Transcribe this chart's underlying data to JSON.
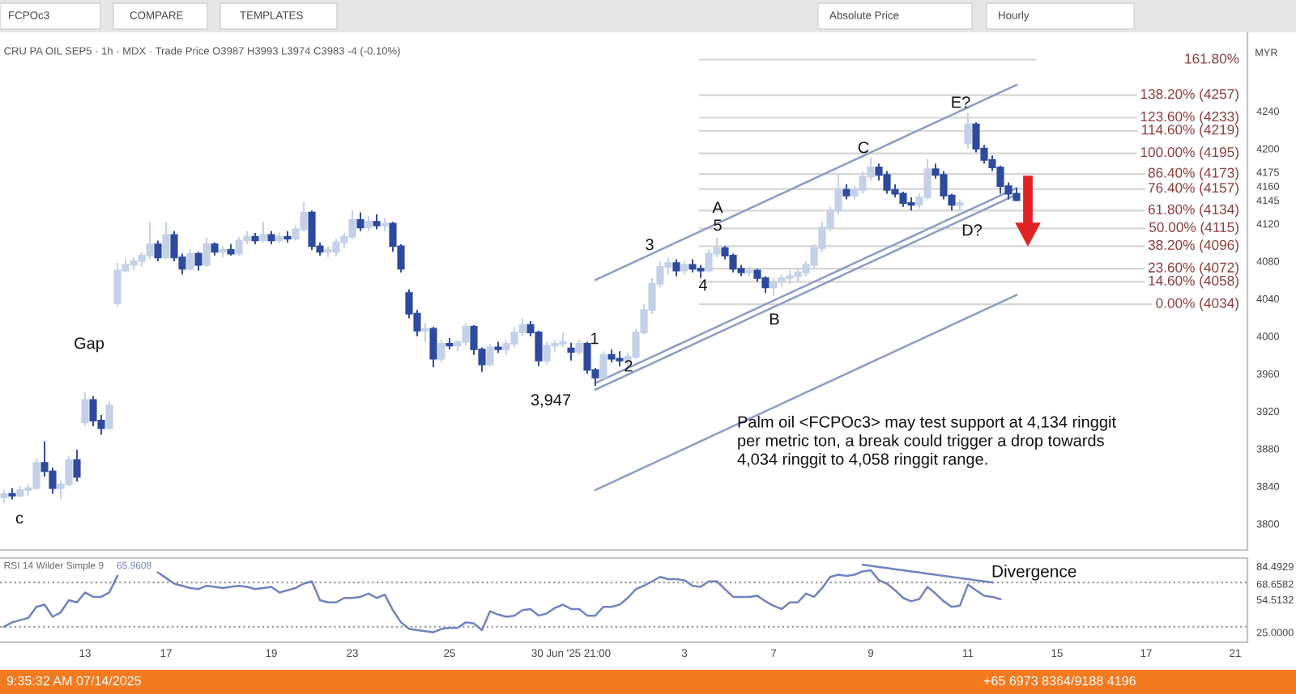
{
  "chart_data": [
    {
      "type": "candlestick",
      "title": "CRU PA OIL SEP5 · 1h · MDX · Trade Price O3987 H3993 L3974 C3983 -4 (-0.10%)",
      "ylabel": "MYR",
      "categories": [
        null,
        null,
        null,
        null,
        null,
        null,
        null,
        null,
        null,
        null,
        null,
        null,
        null,
        null,
        null,
        null,
        null,
        null,
        null,
        null,
        null,
        null,
        null,
        null,
        null,
        null,
        null,
        null,
        null,
        null,
        null,
        null,
        null,
        null,
        null,
        null,
        null,
        null,
        null,
        null,
        null,
        null,
        null,
        null,
        null,
        null,
        null,
        null,
        null,
        null,
        null,
        null,
        null,
        null,
        null,
        null,
        null,
        null,
        null,
        null,
        null,
        null,
        null,
        null,
        null,
        null,
        null,
        null,
        null,
        null,
        null,
        null,
        null,
        null,
        null,
        null,
        null,
        null,
        null,
        null,
        null,
        null,
        null,
        null,
        null,
        null,
        null,
        null,
        null,
        null,
        null,
        null,
        null,
        null,
        null,
        null,
        null,
        null,
        null,
        null,
        null,
        null,
        null,
        null,
        null,
        null,
        null,
        null,
        null,
        null,
        null,
        null,
        null,
        null,
        null,
        null,
        null,
        null,
        null,
        null,
        null,
        null,
        null,
        null,
        null,
        null,
        null,
        null,
        null,
        null,
        null,
        null,
        null,
        null,
        null,
        null,
        null,
        null,
        null,
        null,
        null,
        null,
        null,
        null,
        null,
        null,
        null,
        null,
        null,
        null,
        null,
        null,
        null,
        null
      ],
      "ohlc": [
        [
          3828,
          3836,
          3822,
          3832
        ],
        [
          3832,
          3838,
          3826,
          3830
        ],
        [
          3830,
          3840,
          3828,
          3836
        ],
        [
          3836,
          3842,
          3830,
          3838
        ],
        [
          3838,
          3870,
          3836,
          3865
        ],
        [
          3865,
          3888,
          3850,
          3856
        ],
        [
          3856,
          3860,
          3832,
          3838
        ],
        [
          3838,
          3846,
          3826,
          3842
        ],
        [
          3842,
          3872,
          3840,
          3868
        ],
        [
          3868,
          3879,
          3845,
          3850
        ],
        [
          3908,
          3940,
          3904,
          3932
        ],
        [
          3932,
          3936,
          3904,
          3910
        ],
        [
          3910,
          3916,
          3895,
          3902
        ],
        [
          3902,
          3931,
          3900,
          3926
        ],
        [
          4035,
          4078,
          4031,
          4070
        ],
        [
          4070,
          4083,
          4068,
          4076
        ],
        [
          4076,
          4084,
          4070,
          4080
        ],
        [
          4080,
          4090,
          4074,
          4086
        ],
        [
          4086,
          4122,
          4082,
          4098
        ],
        [
          4098,
          4102,
          4080,
          4084
        ],
        [
          4084,
          4122,
          4082,
          4108
        ],
        [
          4108,
          4112,
          4080,
          4084
        ],
        [
          4084,
          4088,
          4066,
          4072
        ],
        [
          4072,
          4093,
          4070,
          4088
        ],
        [
          4088,
          4090,
          4070,
          4076
        ],
        [
          4076,
          4105,
          4074,
          4098
        ],
        [
          4098,
          4100,
          4086,
          4090
        ],
        [
          4090,
          4096,
          4084,
          4092
        ],
        [
          4092,
          4098,
          4086,
          4088
        ],
        [
          4088,
          4106,
          4086,
          4102
        ],
        [
          4102,
          4112,
          4098,
          4106
        ],
        [
          4106,
          4110,
          4098,
          4102
        ],
        [
          4102,
          4122,
          4100,
          4108
        ],
        [
          4108,
          4112,
          4098,
          4102
        ],
        [
          4102,
          4110,
          4100,
          4106
        ],
        [
          4106,
          4112,
          4100,
          4104
        ],
        [
          4104,
          4118,
          4102,
          4114
        ],
        [
          4114,
          4143,
          4112,
          4132
        ],
        [
          4132,
          4134,
          4092,
          4096
        ],
        [
          4096,
          4100,
          4086,
          4090
        ],
        [
          4090,
          4096,
          4084,
          4092
        ],
        [
          4090,
          4104,
          4086,
          4100
        ],
        [
          4100,
          4110,
          4094,
          4106
        ],
        [
          4106,
          4134,
          4104,
          4124
        ],
        [
          4124,
          4132,
          4112,
          4116
        ],
        [
          4116,
          4128,
          4112,
          4122
        ],
        [
          4122,
          4130,
          4114,
          4118
        ],
        [
          4118,
          4126,
          4112,
          4120
        ],
        [
          4120,
          4122,
          4090,
          4096
        ],
        [
          4096,
          4098,
          4068,
          4072
        ],
        [
          4046,
          4050,
          4019,
          4024
        ],
        [
          4024,
          4028,
          4000,
          4006
        ],
        [
          4006,
          4014,
          3994,
          4008
        ],
        [
          4008,
          4010,
          3967,
          3976
        ],
        [
          3976,
          3996,
          3972,
          3992
        ],
        [
          3992,
          3998,
          3986,
          3990
        ],
        [
          3990,
          3996,
          3984,
          3994
        ],
        [
          3994,
          4014,
          3990,
          4010
        ],
        [
          4010,
          4012,
          3980,
          3986
        ],
        [
          3986,
          3988,
          3962,
          3970
        ],
        [
          3970,
          3992,
          3968,
          3988
        ],
        [
          3988,
          3994,
          3982,
          3986
        ],
        [
          3986,
          3996,
          3980,
          3992
        ],
        [
          3992,
          4010,
          3988,
          4004
        ],
        [
          4004,
          4019,
          4000,
          4012
        ],
        [
          4012,
          4016,
          4000,
          4004
        ],
        [
          4004,
          4006,
          3968,
          3974
        ],
        [
          3974,
          3994,
          3970,
          3990
        ],
        [
          3990,
          3996,
          3984,
          3992
        ],
        [
          3992,
          4004,
          3988,
          3994
        ],
        [
          3987,
          3993,
          3974,
          3983
        ],
        [
          3983,
          3996,
          3980,
          3992
        ],
        [
          3992,
          3994,
          3960,
          3964
        ],
        [
          3964,
          3966,
          3947,
          3956
        ],
        [
          3956,
          3984,
          3954,
          3980
        ],
        [
          3980,
          3986,
          3972,
          3976
        ],
        [
          3976,
          3984,
          3968,
          3974
        ],
        [
          3974,
          3982,
          3966,
          3978
        ],
        [
          3978,
          4008,
          3976,
          4004
        ],
        [
          4004,
          4034,
          4002,
          4028
        ],
        [
          4028,
          4062,
          4024,
          4056
        ],
        [
          4056,
          4080,
          4052,
          4074
        ],
        [
          4074,
          4084,
          4066,
          4078
        ],
        [
          4078,
          4082,
          4064,
          4070
        ],
        [
          4070,
          4080,
          4066,
          4076
        ],
        [
          4076,
          4082,
          4068,
          4072
        ],
        [
          4072,
          4076,
          4062,
          4070
        ],
        [
          4070,
          4092,
          4068,
          4088
        ],
        [
          4088,
          4105,
          4084,
          4094
        ],
        [
          4094,
          4096,
          4082,
          4086
        ],
        [
          4086,
          4088,
          4068,
          4072
        ],
        [
          4072,
          4076,
          4064,
          4068
        ],
        [
          4068,
          4074,
          4064,
          4070
        ],
        [
          4070,
          4072,
          4058,
          4062
        ],
        [
          4062,
          4064,
          4046,
          4052
        ],
        [
          4052,
          4062,
          4043,
          4058
        ],
        [
          4058,
          4066,
          4052,
          4062
        ],
        [
          4062,
          4070,
          4056,
          4064
        ],
        [
          4064,
          4072,
          4058,
          4068
        ],
        [
          4068,
          4080,
          4064,
          4076
        ],
        [
          4076,
          4098,
          4072,
          4094
        ],
        [
          4094,
          4122,
          4090,
          4116
        ],
        [
          4116,
          4138,
          4112,
          4134
        ],
        [
          4134,
          4174,
          4130,
          4156
        ],
        [
          4156,
          4162,
          4146,
          4150
        ],
        [
          4150,
          4160,
          4146,
          4156
        ],
        [
          4156,
          4176,
          4152,
          4170
        ],
        [
          4170,
          4191,
          4166,
          4180
        ],
        [
          4180,
          4184,
          4166,
          4172
        ],
        [
          4172,
          4176,
          4152,
          4156
        ],
        [
          4156,
          4162,
          4148,
          4152
        ],
        [
          4152,
          4154,
          4138,
          4142
        ],
        [
          4142,
          4148,
          4134,
          4140
        ],
        [
          4140,
          4152,
          4136,
          4148
        ],
        [
          4148,
          4189,
          4146,
          4178
        ],
        [
          4178,
          4184,
          4168,
          4172
        ],
        [
          4172,
          4176,
          4146,
          4150
        ],
        [
          4150,
          4152,
          4134,
          4140
        ],
        [
          4140,
          4146,
          4134,
          4142
        ],
        [
          4206,
          4238,
          4200,
          4226
        ],
        [
          4226,
          4228,
          4196,
          4200
        ],
        [
          4200,
          4204,
          4184,
          4188
        ],
        [
          4188,
          4193,
          4176,
          4180
        ],
        [
          4180,
          4182,
          4152,
          4160
        ],
        [
          4160,
          4164,
          4146,
          4152
        ],
        [
          4152,
          4158,
          4144,
          4145
        ],
        null,
        null,
        null,
        null,
        null,
        null,
        null,
        null,
        null,
        null,
        null,
        null,
        null,
        null,
        null,
        null,
        null,
        null,
        null,
        null,
        null,
        null,
        null,
        null,
        null,
        null,
        null,
        null
      ],
      "colors": [
        "#c3d0e8",
        "#2e4a9e",
        "#c3d0e8",
        "#c3d0e8",
        "#c3d0e8",
        "#2e4a9e",
        "#2e4a9e",
        "#c3d0e8",
        "#c3d0e8",
        "#2e4a9e",
        "#c3d0e8",
        "#2e4a9e",
        "#2e4a9e",
        "#c3d0e8",
        "#c3d0e8",
        "#c3d0e8",
        "#c3d0e8",
        "#c3d0e8",
        "#c3d0e8",
        "#2e4a9e",
        "#c3d0e8",
        "#2e4a9e",
        "#2e4a9e",
        "#c3d0e8",
        "#2e4a9e",
        "#c3d0e8",
        "#2e4a9e",
        "#c3d0e8",
        "#2e4a9e",
        "#c3d0e8",
        "#c3d0e8",
        "#2e4a9e",
        "#c3d0e8",
        "#2e4a9e",
        "#c3d0e8",
        "#2e4a9e",
        "#c3d0e8",
        "#c3d0e8",
        "#2e4a9e",
        "#2e4a9e",
        "#c3d0e8",
        "#c3d0e8",
        "#c3d0e8",
        "#c3d0e8",
        "#2e4a9e",
        "#c3d0e8",
        "#2e4a9e",
        "#c3d0e8",
        "#2e4a9e",
        "#2e4a9e",
        "#2e4a9e",
        "#2e4a9e",
        "#c3d0e8",
        "#2e4a9e",
        "#c3d0e8",
        "#2e4a9e",
        "#c3d0e8",
        "#c3d0e8",
        "#2e4a9e",
        "#2e4a9e",
        "#c3d0e8",
        "#2e4a9e",
        "#c3d0e8",
        "#c3d0e8",
        "#c3d0e8",
        "#2e4a9e",
        "#2e4a9e",
        "#c3d0e8",
        "#c3d0e8",
        "#c3d0e8",
        "#2e4a9e",
        "#c3d0e8",
        "#2e4a9e",
        "#2e4a9e",
        "#c3d0e8",
        "#2e4a9e",
        "#2e4a9e",
        "#c3d0e8",
        "#c3d0e8",
        "#c3d0e8",
        "#c3d0e8",
        "#c3d0e8",
        "#c3d0e8",
        "#2e4a9e",
        "#c3d0e8",
        "#2e4a9e",
        "#2e4a9e",
        "#c3d0e8",
        "#c3d0e8",
        "#2e4a9e",
        "#2e4a9e",
        "#2e4a9e",
        "#c3d0e8",
        "#2e4a9e",
        "#2e4a9e",
        "#c3d0e8",
        "#c3d0e8",
        "#c3d0e8",
        "#c3d0e8",
        "#c3d0e8",
        "#c3d0e8",
        "#c3d0e8",
        "#c3d0e8",
        "#c3d0e8",
        "#2e4a9e",
        "#c3d0e8",
        "#c3d0e8",
        "#c3d0e8",
        "#2e4a9e",
        "#2e4a9e",
        "#2e4a9e",
        "#2e4a9e",
        "#2e4a9e",
        "#c3d0e8",
        "#c3d0e8",
        "#2e4a9e",
        "#2e4a9e",
        "#2e4a9e",
        "#c3d0e8",
        "#c3d0e8",
        "#2e4a9e",
        "#2e4a9e",
        "#2e4a9e",
        "#2e4a9e",
        "#2e4a9e",
        "#2e4a9e",
        null,
        null,
        null,
        null,
        null,
        null,
        null,
        null,
        null,
        null,
        null,
        null,
        null,
        null,
        null,
        null,
        null,
        null,
        null,
        null,
        null,
        null,
        null,
        null,
        null,
        null,
        null,
        null
      ],
      "series": [
        {
          "type": "line",
          "color": "#8c9cc4",
          "values": [
            null,
            null,
            null,
            null,
            null,
            null,
            null,
            null,
            null,
            null,
            null,
            null,
            null,
            null,
            null,
            null,
            null,
            null,
            null,
            null,
            null,
            null,
            null,
            null,
            null,
            null,
            null,
            null,
            null,
            null,
            null,
            null,
            null,
            null,
            null,
            null,
            null,
            null,
            null,
            null,
            null,
            null,
            null,
            null,
            null,
            null,
            null,
            null,
            null,
            null,
            null,
            null,
            null,
            null,
            null,
            null,
            null,
            null,
            null,
            null,
            null,
            null,
            null,
            null,
            null,
            null,
            null,
            null,
            null,
            null,
            null,
            null,
            null,
            4060,
            4064,
            4068,
            4072,
            4076,
            4080,
            4084,
            4088,
            4092,
            4096,
            4100,
            4104,
            4108,
            4112,
            4116,
            4120,
            4124,
            4128,
            4132,
            4136,
            4140,
            4144,
            4148,
            4152,
            4156,
            4160,
            4164,
            4168,
            4172,
            4176,
            4180,
            4184,
            4188,
            4192,
            4196,
            4200,
            4204,
            4208,
            4212,
            4216,
            4220,
            4224,
            4228,
            4232,
            4236,
            4240,
            4244,
            4248,
            4252,
            4256,
            4260,
            4264,
            4268,
            null,
            null,
            null,
            null,
            null,
            null,
            null,
            null,
            null,
            null,
            null,
            null,
            null,
            null,
            null,
            null,
            null,
            null,
            null,
            null,
            null,
            null,
            null,
            null,
            null,
            null,
            null,
            null
          ]
        },
        {
          "type": "line",
          "color": "#8c9cc4",
          "values": [
            null,
            null,
            null,
            null,
            null,
            null,
            null,
            null,
            null,
            null,
            null,
            null,
            null,
            null,
            null,
            null,
            null,
            null,
            null,
            null,
            null,
            null,
            null,
            null,
            null,
            null,
            null,
            null,
            null,
            null,
            null,
            null,
            null,
            null,
            null,
            null,
            null,
            null,
            null,
            null,
            null,
            null,
            null,
            null,
            null,
            null,
            null,
            null,
            null,
            null,
            null,
            null,
            null,
            null,
            null,
            null,
            null,
            null,
            null,
            null,
            null,
            null,
            null,
            null,
            null,
            null,
            null,
            null,
            null,
            null,
            null,
            null,
            null,
            3950,
            3954,
            3958,
            3962,
            3966,
            3970,
            3974,
            3978,
            3982,
            3986,
            3990,
            3994,
            3998,
            4002,
            4006,
            4010,
            4014,
            4018,
            4022,
            4026,
            4030,
            4034,
            4038,
            4042,
            4046,
            4050,
            4054,
            4058,
            4062,
            4066,
            4070,
            4074,
            4078,
            4082,
            4086,
            4090,
            4094,
            4098,
            4102,
            4106,
            4110,
            4114,
            4118,
            4122,
            4126,
            4130,
            4134,
            4138,
            4142,
            4146,
            4150,
            4154,
            4158,
            null,
            null,
            null,
            null,
            null,
            null,
            null,
            null,
            null,
            null,
            null,
            null,
            null,
            null,
            null,
            null,
            null,
            null,
            null,
            null,
            null,
            null,
            null,
            null,
            null,
            null,
            null,
            null
          ]
        },
        {
          "type": "line",
          "color": "#8c9cc4",
          "values": [
            null,
            null,
            null,
            null,
            null,
            null,
            null,
            null,
            null,
            null,
            null,
            null,
            null,
            null,
            null,
            null,
            null,
            null,
            null,
            null,
            null,
            null,
            null,
            null,
            null,
            null,
            null,
            null,
            null,
            null,
            null,
            null,
            null,
            null,
            null,
            null,
            null,
            null,
            null,
            null,
            null,
            null,
            null,
            null,
            null,
            null,
            null,
            null,
            null,
            null,
            null,
            null,
            null,
            null,
            null,
            null,
            null,
            null,
            null,
            null,
            null,
            null,
            null,
            null,
            null,
            null,
            null,
            null,
            null,
            null,
            null,
            null,
            null,
            3943,
            3947,
            3951,
            3955,
            3959,
            3963,
            3967,
            3971,
            3975,
            3979,
            3983,
            3987,
            3991,
            3995,
            3999,
            4003,
            4007,
            4011,
            4015,
            4019,
            4023,
            4027,
            4031,
            4035,
            4039,
            4043,
            4047,
            4051,
            4055,
            4059,
            4063,
            4067,
            4071,
            4075,
            4079,
            4083,
            4087,
            4091,
            4095,
            4099,
            4103,
            4107,
            4111,
            4115,
            4119,
            4123,
            4127,
            4131,
            4135,
            4139,
            4143,
            4147,
            4151,
            null,
            null,
            null,
            null,
            null,
            null,
            null,
            null,
            null,
            null,
            null,
            null,
            null,
            null,
            null,
            null,
            null,
            null,
            null,
            null,
            null,
            null,
            null,
            null,
            null,
            null,
            null,
            null
          ]
        },
        {
          "type": "line",
          "color": "#8c9cc4",
          "values": [
            null,
            null,
            null,
            null,
            null,
            null,
            null,
            null,
            null,
            null,
            null,
            null,
            null,
            null,
            null,
            null,
            null,
            null,
            null,
            null,
            null,
            null,
            null,
            null,
            null,
            null,
            null,
            null,
            null,
            null,
            null,
            null,
            null,
            null,
            null,
            null,
            null,
            null,
            null,
            null,
            null,
            null,
            null,
            null,
            null,
            null,
            null,
            null,
            null,
            null,
            null,
            null,
            null,
            null,
            null,
            null,
            null,
            null,
            null,
            null,
            null,
            null,
            null,
            null,
            null,
            null,
            null,
            null,
            null,
            null,
            null,
            null,
            null,
            3836,
            3840,
            3844,
            3848,
            3852,
            3856,
            3860,
            3864,
            3868,
            3872,
            3876,
            3880,
            3884,
            3888,
            3892,
            3896,
            3900,
            3904,
            3908,
            3912,
            3916,
            3920,
            3924,
            3928,
            3932,
            3936,
            3940,
            3944,
            3948,
            3952,
            3956,
            3960,
            3964,
            3968,
            3972,
            3976,
            3980,
            3984,
            3988,
            3992,
            3996,
            4000,
            4004,
            4008,
            4012,
            4016,
            4020,
            4024,
            4028,
            4032,
            4036,
            4040,
            4044,
            null,
            null,
            null,
            null,
            null,
            null,
            null,
            null,
            null,
            null,
            null,
            null,
            null,
            null,
            null,
            null,
            null,
            null,
            null,
            null,
            null,
            null,
            null,
            null,
            null,
            null,
            null,
            null
          ]
        }
      ],
      "ylim": [
        3772,
        4324
      ],
      "yticks": [
        3800,
        3840,
        3880,
        3920,
        3960,
        4000,
        4040,
        4080,
        4120,
        4145,
        4160,
        4175,
        4200,
        4240
      ],
      "ref_lines": [
        {
          "axis": "y",
          "value": 4295,
          "color": "#d5d5d5"
        },
        {
          "axis": "y",
          "value": 4257,
          "label": "138.20% (4257)",
          "color": "#d5d5d5"
        },
        {
          "axis": "y",
          "value": 4233,
          "label": "123.60% (4233)",
          "color": "#d5d5d5"
        },
        {
          "axis": "y",
          "value": 4219,
          "label": "114.60% (4219)",
          "color": "#d5d5d5"
        },
        {
          "axis": "y",
          "value": 4195,
          "label": "100.00% (4195)",
          "color": "#d5d5d5"
        },
        {
          "axis": "y",
          "value": 4173,
          "label": "86.40% (4173)",
          "color": "#d5d5d5"
        },
        {
          "axis": "y",
          "value": 4157,
          "label": "76.40% (4157)",
          "color": "#d5d5d5"
        },
        {
          "axis": "y",
          "value": 4134,
          "label": "61.80% (4134)",
          "color": "#d5d5d5"
        },
        {
          "axis": "y",
          "value": 4115,
          "label": "50.00% (4115)",
          "color": "#d5d5d5"
        },
        {
          "axis": "y",
          "value": 4096,
          "label": "38.20% (4096)",
          "color": "#d5d5d5"
        },
        {
          "axis": "y",
          "value": 4072,
          "label": "23.60% (4072)",
          "color": "#d5d5d5"
        },
        {
          "axis": "y",
          "value": 4058,
          "label": "14.60% (4058)",
          "color": "#d5d5d5"
        },
        {
          "axis": "y",
          "value": 4034,
          "label": "0.00% (4034)",
          "color": "#d5d5d5"
        }
      ],
      "annotations": [
        "FCPOc3",
        "COMPARE",
        "TEMPLATES",
        "Absolute Price",
        "Hourly",
        "Palm oil <FCPOc3> may test support at 4,134 ringgit per metric ton, a break could trigger a drop towards 4,034 ringgit to 4,058 ringgit range.",
        "161.80%",
        "c",
        "Gap",
        "3,947",
        "1",
        "2",
        "3",
        "4",
        "5",
        "A",
        "B",
        "C",
        "E?",
        "D?"
      ]
    },
    {
      "type": "line",
      "categories": [
        null,
        null,
        null,
        null,
        null,
        null,
        null,
        null,
        null,
        null,
        "13",
        null,
        null,
        null,
        null,
        null,
        null,
        null,
        null,
        null,
        "17",
        null,
        null,
        null,
        null,
        null,
        null,
        null,
        null,
        null,
        null,
        null,
        null,
        "19",
        null,
        null,
        null,
        null,
        null,
        null,
        null,
        null,
        null,
        "23",
        null,
        null,
        null,
        null,
        null,
        null,
        null,
        null,
        null,
        null,
        null,
        "25",
        null,
        null,
        null,
        null,
        null,
        null,
        null,
        null,
        null,
        null,
        null,
        null,
        null,
        null,
        "30 Jun '25 21:00",
        null,
        null,
        null,
        null,
        null,
        null,
        null,
        null,
        null,
        null,
        null,
        null,
        null,
        "3",
        null,
        null,
        null,
        null,
        null,
        null,
        null,
        null,
        null,
        null,
        "7",
        null,
        null,
        null,
        null,
        null,
        null,
        null,
        null,
        null,
        null,
        null,
        "9",
        null,
        null,
        null,
        null,
        null,
        null,
        null,
        null,
        null,
        null,
        null,
        "11",
        null,
        null,
        null,
        null,
        null,
        null,
        null,
        null,
        null,
        null,
        "15",
        null,
        null,
        null,
        null,
        null,
        null,
        null,
        null,
        null,
        null,
        "17",
        null,
        null,
        null,
        null,
        null,
        null,
        null,
        null,
        null,
        null,
        "21",
        null
      ],
      "series": [
        {
          "name": "RSI 14 Wilder Simple 9",
          "color": "#7083bf",
          "values": [
            30,
            34,
            36,
            38,
            48,
            50,
            39,
            43,
            54,
            52,
            61,
            57,
            57,
            61,
            76,
            null,
            null,
            null,
            null,
            79,
            74,
            69,
            67,
            65,
            64,
            67,
            66,
            65,
            66,
            67,
            66,
            64,
            65,
            66,
            61,
            63,
            65,
            69,
            71,
            54,
            52,
            52,
            56,
            56,
            57,
            60,
            56,
            59,
            45,
            34,
            28,
            27,
            26,
            25,
            28,
            29,
            29,
            34,
            33,
            27,
            44,
            41,
            39,
            40,
            45,
            46,
            40,
            42,
            47,
            50,
            46,
            46,
            40,
            40,
            48,
            48,
            50,
            56,
            64,
            67,
            71,
            75,
            73,
            73,
            72,
            67,
            66,
            71,
            71,
            64,
            57,
            57,
            57,
            58,
            53,
            49,
            46,
            52,
            52,
            60,
            57,
            65,
            75,
            77,
            76,
            77,
            80,
            81,
            72,
            69,
            63,
            56,
            53,
            55,
            66,
            60,
            53,
            48,
            49,
            68,
            63,
            58,
            57,
            55,
            null,
            null,
            null,
            null,
            null,
            null,
            null,
            null,
            null,
            null,
            null,
            null,
            null,
            null,
            null,
            null,
            null,
            null,
            null,
            null,
            null,
            null,
            null,
            null,
            null,
            null,
            null,
            null,
            null,
            null
          ]
        },
        {
          "type": "line",
          "color": "#7083bf",
          "values": [
            null,
            null,
            null,
            null,
            null,
            null,
            null,
            null,
            null,
            null,
            null,
            null,
            null,
            null,
            null,
            null,
            null,
            null,
            null,
            null,
            null,
            null,
            null,
            null,
            null,
            null,
            null,
            null,
            null,
            null,
            null,
            null,
            null,
            null,
            null,
            null,
            null,
            null,
            null,
            null,
            null,
            null,
            null,
            null,
            null,
            null,
            null,
            null,
            null,
            null,
            null,
            null,
            null,
            null,
            null,
            null,
            null,
            null,
            null,
            null,
            null,
            null,
            null,
            null,
            null,
            null,
            null,
            null,
            null,
            null,
            null,
            null,
            null,
            null,
            null,
            null,
            null,
            null,
            null,
            null,
            null,
            null,
            null,
            null,
            null,
            null,
            null,
            null,
            null,
            null,
            null,
            null,
            null,
            null,
            null,
            null,
            null,
            null,
            null,
            null,
            null,
            null,
            null,
            null,
            null,
            null,
            86,
            85,
            84,
            83,
            82,
            81,
            80,
            79,
            78,
            77,
            76,
            75,
            74,
            73,
            72,
            71,
            70,
            null,
            null,
            null,
            null,
            null,
            null,
            null,
            null,
            null,
            null,
            null,
            null,
            null,
            null,
            null,
            null,
            null,
            null,
            null,
            null,
            null,
            null,
            null,
            null,
            null,
            null,
            null,
            null,
            null,
            null,
            null
          ]
        }
      ],
      "ylim": [
        16,
        92
      ],
      "yticks": [
        {
          "value": 25,
          "label": "25.0000"
        },
        54.5132,
        68.6582,
        84.4929
      ],
      "ref_lines": [
        {
          "axis": "y",
          "value": 70,
          "color": "#9a9a9a",
          "line_style": "dotted"
        },
        {
          "axis": "y",
          "value": 30,
          "color": "#9a9a9a",
          "line_style": "dotted"
        }
      ],
      "annotations": [
        "65.9608",
        "9:35:32 AM 07/14/2025",
        "+65 6973 8364/9188 4196",
        "Divergence"
      ]
    }
  ]
}
